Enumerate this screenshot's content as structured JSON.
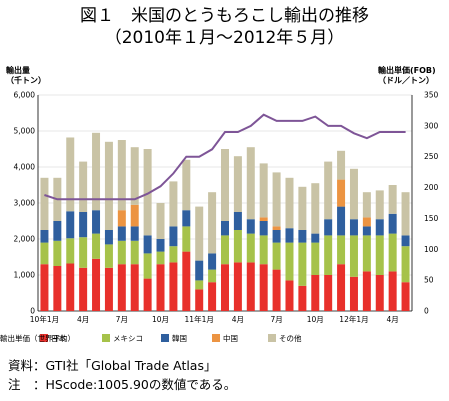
{
  "header": {
    "title_line1": "図１　米国のとうもろこし輸出の推移",
    "title_line2": "（2010年１月～2012年５月）"
  },
  "chart_data": {
    "type": "bar",
    "stacked": true,
    "categories": [
      "10年1月",
      "2",
      "3",
      "4",
      "5",
      "6",
      "7",
      "8",
      "9",
      "10",
      "11",
      "12",
      "11年1月",
      "2",
      "3",
      "4",
      "5",
      "6",
      "7",
      "8",
      "9",
      "10",
      "11",
      "12",
      "12年1月",
      "2",
      "3",
      "4",
      "5"
    ],
    "x_tick_labels": [
      "10年1月",
      "4月",
      "7月",
      "10月",
      "11年1月",
      "4月",
      "7月",
      "10月",
      "12年1月",
      "4月"
    ],
    "y_left": {
      "label": "輸出量\n（千トン）",
      "ylim": [
        0,
        6000
      ],
      "ticks": [
        "0",
        "1,000",
        "2,000",
        "3,000",
        "4,000",
        "5,000",
        "6,000"
      ]
    },
    "y_right": {
      "label": "輸出単価(FOB)\n（ドル／トン）",
      "ylim": [
        0,
        350
      ],
      "ticks": [
        "0",
        "50",
        "100",
        "150",
        "200",
        "250",
        "300",
        "350"
      ]
    },
    "series": [
      {
        "name": "日本",
        "color": "#e8302b",
        "values": [
          1300,
          1250,
          1320,
          1200,
          1450,
          1200,
          1300,
          1300,
          900,
          1300,
          1350,
          1650,
          600,
          800,
          1300,
          1350,
          1350,
          1300,
          1150,
          850,
          700,
          1000,
          1000,
          1300,
          950,
          1100,
          1000,
          1100,
          800
        ]
      },
      {
        "name": "メキシコ",
        "color": "#a6c24a",
        "values": [
          600,
          700,
          700,
          850,
          700,
          650,
          650,
          650,
          700,
          350,
          450,
          700,
          250,
          350,
          800,
          900,
          800,
          800,
          750,
          1050,
          1200,
          900,
          1100,
          800,
          1150,
          1000,
          1100,
          1050,
          1000
        ]
      },
      {
        "name": "韓国",
        "color": "#2f5f9e",
        "values": [
          350,
          550,
          750,
          700,
          650,
          400,
          400,
          400,
          500,
          350,
          550,
          450,
          550,
          450,
          400,
          500,
          400,
          400,
          350,
          400,
          350,
          250,
          450,
          800,
          450,
          250,
          450,
          550,
          300
        ]
      },
      {
        "name": "中国",
        "color": "#ec9442",
        "values": [
          0,
          0,
          0,
          0,
          0,
          0,
          450,
          600,
          0,
          0,
          0,
          0,
          0,
          0,
          0,
          0,
          0,
          100,
          100,
          0,
          0,
          0,
          0,
          750,
          0,
          250,
          0,
          0,
          0
        ]
      },
      {
        "name": "その他",
        "color": "#c9c3a5",
        "values": [
          1450,
          1200,
          2050,
          1400,
          2150,
          2450,
          1950,
          1600,
          2400,
          1000,
          1250,
          1400,
          1500,
          1700,
          2000,
          1550,
          2000,
          1500,
          1500,
          1400,
          1200,
          1400,
          1600,
          800,
          1400,
          700,
          800,
          800,
          1200
        ]
      }
    ],
    "line_series": {
      "name": "輸出単価（世界平均）",
      "color": "#7e5597",
      "axis": "right",
      "values": [
        188,
        181,
        181,
        181,
        181,
        181,
        181,
        181,
        190,
        202,
        223,
        250,
        250,
        262,
        290,
        290,
        300,
        318,
        308,
        308,
        308,
        315,
        300,
        300,
        288,
        280,
        290,
        290,
        290
      ]
    },
    "grid": true,
    "legend_position": "bottom"
  },
  "footnotes": {
    "source": "資料：GTI社「Global Trade Atlas」",
    "note": "注　：HScode:1005.90の数値である。"
  }
}
